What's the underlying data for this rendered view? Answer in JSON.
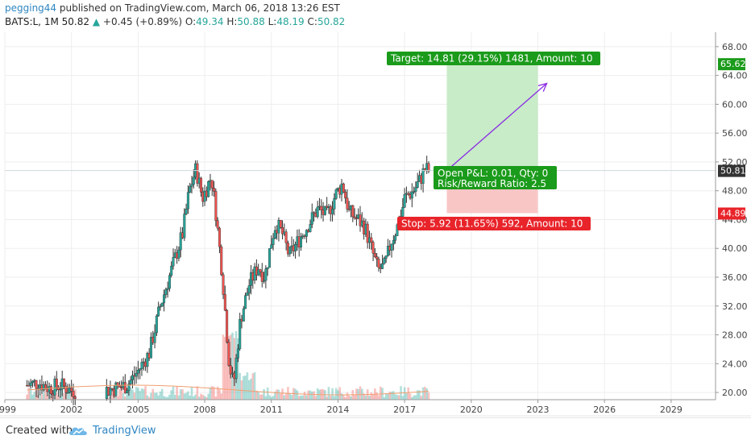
{
  "header": {
    "author": "pegging44",
    "published_text": " published on TradingView.com, March 06, 2018 13:26 EST",
    "symbol": "BATS:L, 1M",
    "last": "50.82",
    "change": "+0.45 (+0.89%)",
    "o_label": "O:",
    "o_value": "49.34",
    "h_label": "H:",
    "h_value": "50.88",
    "l_label": "L:",
    "l_value": "48.19",
    "c_label": "C:",
    "c_value": "50.82"
  },
  "footer": {
    "created_with": "Created with",
    "brand": "TradingView",
    "logo_icon": "tradingview-cloud-icon"
  },
  "colors": {
    "up": "#26a69a",
    "down": "#ef5350",
    "target_zone": "#c8ebc8",
    "stop_zone": "#f9c6c6",
    "target_label": "#1b9b1b",
    "stop_label": "#e8242a",
    "arrow": "#8a2be2"
  },
  "chart_data": {
    "type": "candlestick",
    "x_ticks": [
      "1999",
      "2002",
      "2005",
      "2008",
      "2011",
      "2014",
      "2017",
      "2020",
      "2023",
      "2026",
      "2029"
    ],
    "y_ticks": [
      "20.00",
      "24.00",
      "28.00",
      "32.00",
      "36.00",
      "40.00",
      "44.00",
      "48.00",
      "52.00",
      "56.00",
      "60.00",
      "64.00",
      "68.00"
    ],
    "ylim": [
      19,
      70
    ],
    "xlim": [
      1999,
      2031
    ],
    "price_badges": [
      {
        "label": "65.62",
        "value": 65.62,
        "color": "#1b9b1b"
      },
      {
        "label": "50.81",
        "value": 50.81,
        "color": "#333333"
      },
      {
        "label": "44.89",
        "value": 44.89,
        "color": "#e8242a"
      }
    ],
    "annotations": {
      "target": "Target: 14.81 (29.15%) 1481, Amount: 10",
      "stop": "Stop: 5.92 (11.65%) 592, Amount: 10",
      "open_pnl": "Open P&L: 0.01, Qty: 0",
      "risk_reward": "Risk/Reward Ratio: 2.5"
    },
    "position": {
      "entry": 50.81,
      "target": 65.62,
      "stop": 44.89,
      "x_start": 2018.9,
      "x_end": 2023.0
    },
    "arrow": {
      "from": [
        2018.9,
        50.8
      ],
      "to": [
        2023.4,
        62.9
      ]
    },
    "price_path": [
      [
        2000.0,
        21.0
      ],
      [
        2000.5,
        21.4
      ],
      [
        2001.0,
        20.6
      ],
      [
        2001.5,
        21.0
      ],
      [
        2002.0,
        20.3
      ],
      [
        2003.5,
        20.3
      ],
      [
        2004.5,
        21.0
      ],
      [
        2005.0,
        23.0
      ],
      [
        2005.5,
        25.5
      ],
      [
        2006.0,
        32.0
      ],
      [
        2006.5,
        37.0
      ],
      [
        2007.0,
        42.0
      ],
      [
        2007.3,
        48.0
      ],
      [
        2007.6,
        51.0
      ],
      [
        2007.9,
        47.0
      ],
      [
        2008.3,
        50.0
      ],
      [
        2008.5,
        45.0
      ],
      [
        2008.8,
        36.0
      ],
      [
        2009.1,
        24.0
      ],
      [
        2009.3,
        21.0
      ],
      [
        2009.6,
        30.0
      ],
      [
        2010.0,
        35.0
      ],
      [
        2010.4,
        37.5
      ],
      [
        2010.7,
        36.0
      ],
      [
        2011.0,
        41.0
      ],
      [
        2011.2,
        43.5
      ],
      [
        2011.5,
        42.0
      ],
      [
        2011.8,
        39.0
      ],
      [
        2012.2,
        41.0
      ],
      [
        2012.6,
        43.0
      ],
      [
        2013.1,
        45.5
      ],
      [
        2013.5,
        44.5
      ],
      [
        2013.9,
        47.5
      ],
      [
        2014.2,
        49.0
      ],
      [
        2014.5,
        45.0
      ],
      [
        2014.9,
        44.0
      ],
      [
        2015.2,
        43.0
      ],
      [
        2015.5,
        40.0
      ],
      [
        2015.8,
        37.0
      ],
      [
        2016.1,
        37.5
      ],
      [
        2016.4,
        41.0
      ],
      [
        2016.8,
        44.0
      ],
      [
        2017.0,
        47.0
      ],
      [
        2017.4,
        48.0
      ],
      [
        2017.7,
        49.5
      ],
      [
        2017.9,
        51.0
      ],
      [
        2018.1,
        50.8
      ]
    ]
  }
}
